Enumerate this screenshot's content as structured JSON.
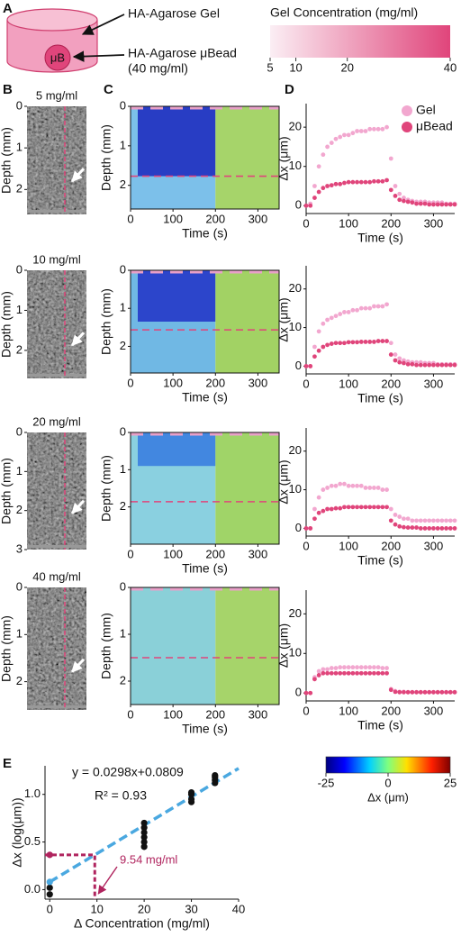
{
  "panel_labels": [
    "A",
    "B",
    "C",
    "D",
    "E"
  ],
  "panel_a": {
    "gel_label": "HA-Agarose Gel",
    "bead_label": "HA-Agarose μBead",
    "bead_conc": "(40 mg/ml)",
    "bead_symbol": "μB",
    "scale": {
      "title": "Gel Concentration (mg/ml)",
      "xlim": [
        5,
        40
      ],
      "xticks": [
        5,
        10,
        20,
        40
      ]
    }
  },
  "ultrasound": [
    {
      "title": "5 mg/ml",
      "ylabel": "Depth (mm)",
      "ylim": [
        2.6,
        0
      ],
      "yticks": [
        0,
        1,
        2
      ]
    },
    {
      "title": "10 mg/ml",
      "ylabel": "Depth (mm)",
      "ylim": [
        2.7,
        0
      ],
      "yticks": [
        0,
        1,
        2
      ]
    },
    {
      "title": "20 mg/ml",
      "ylabel": "Depth (mm)",
      "ylim": [
        3,
        0
      ],
      "yticks": [
        0,
        1,
        2,
        3
      ]
    },
    {
      "title": "40 mg/ml",
      "ylabel": "Depth (mm)",
      "ylim": [
        2.6,
        0
      ],
      "yticks": [
        0,
        1,
        2
      ]
    }
  ],
  "heatmaps": [
    {
      "xlabel": "Time (s)",
      "ylabel": "Depth (mm)",
      "xlim": [
        0,
        350
      ],
      "xticks": [
        0,
        100,
        200,
        300
      ],
      "ylim": [
        2.6,
        0
      ],
      "yticks": [
        0,
        1,
        2
      ]
    },
    {
      "xlabel": "Time (s)",
      "ylabel": "Depth (mm)",
      "xlim": [
        0,
        350
      ],
      "xticks": [
        0,
        100,
        200,
        300
      ],
      "ylim": [
        2.7,
        0
      ],
      "yticks": [
        0,
        1,
        2
      ]
    },
    {
      "xlabel": "Time (s)",
      "ylabel": "Depth (mm)",
      "xlim": [
        0,
        350
      ],
      "xticks": [
        0,
        100,
        200,
        300
      ],
      "ylim": [
        3,
        0
      ],
      "yticks": [
        0,
        1,
        2
      ]
    },
    {
      "xlabel": "Time (s)",
      "ylabel": "Depth (mm)",
      "xlim": [
        0,
        350
      ],
      "xticks": [
        0,
        100,
        200,
        300
      ],
      "ylim": [
        2.5,
        0
      ],
      "yticks": [
        0,
        1,
        2
      ]
    }
  ],
  "colorbar": {
    "label": "Δx (μm)",
    "xlim": [
      -25,
      25
    ],
    "xticks": [
      -25,
      0,
      25
    ]
  },
  "chart_data": [
    {
      "type": "scatter",
      "xlabel": "Time (s)",
      "ylabel": "Δx (μm)",
      "xlim": [
        0,
        350
      ],
      "xticks": [
        0,
        100,
        200,
        300
      ],
      "ylim": [
        -2,
        26
      ],
      "yticks": [
        0,
        10,
        20
      ],
      "legend": "upper right",
      "x": [
        0,
        10,
        20,
        30,
        40,
        50,
        60,
        70,
        80,
        90,
        100,
        110,
        120,
        130,
        140,
        150,
        160,
        170,
        180,
        190,
        200,
        210,
        220,
        230,
        240,
        250,
        260,
        270,
        280,
        290,
        300,
        310,
        320,
        330,
        340,
        350
      ],
      "series": [
        {
          "name": "Gel",
          "color": "#f2a7cf",
          "values": [
            0,
            0.5,
            5,
            10,
            13,
            15,
            16,
            17,
            17.5,
            18,
            18,
            18.5,
            19,
            19,
            19,
            19.5,
            19.5,
            19.5,
            19.5,
            20,
            12,
            5,
            3,
            2,
            1.5,
            1.2,
            1,
            1,
            1,
            0.8,
            0.8,
            0.8,
            0.8,
            0.5,
            0.5,
            0.5
          ]
        },
        {
          "name": "μBead",
          "color": "#e0457b",
          "values": [
            0,
            0,
            2,
            3.5,
            4.5,
            5,
            5.2,
            5.5,
            5.5,
            5.8,
            6,
            6,
            6,
            6,
            6,
            6,
            6.2,
            6.2,
            6.2,
            6.5,
            4,
            2.5,
            1.5,
            1.2,
            1,
            0.8,
            0.5,
            0.5,
            0.5,
            0.3,
            0.3,
            0.3,
            0.3,
            0.3,
            0.3,
            0.3
          ]
        }
      ]
    },
    {
      "type": "scatter",
      "xlabel": "Time (s)",
      "ylabel": "Δx (μm)",
      "xlim": [
        0,
        350
      ],
      "xticks": [
        0,
        100,
        200,
        300
      ],
      "ylim": [
        -2,
        26
      ],
      "yticks": [
        0,
        10,
        20
      ],
      "x": [
        0,
        10,
        20,
        30,
        40,
        50,
        60,
        70,
        80,
        90,
        100,
        110,
        120,
        130,
        140,
        150,
        160,
        170,
        180,
        190,
        200,
        210,
        220,
        230,
        240,
        250,
        260,
        270,
        280,
        290,
        300,
        310,
        320,
        330,
        340,
        350
      ],
      "series": [
        {
          "color": "#f2a7cf",
          "values": [
            0,
            0,
            5,
            9,
            11,
            12,
            12.5,
            13,
            13.5,
            14,
            14,
            14.5,
            14.5,
            15,
            15,
            15,
            15.5,
            15.5,
            15.5,
            16,
            6,
            3,
            2,
            1.5,
            1.2,
            1,
            1,
            1,
            0.8,
            0.8,
            0.8,
            0.5,
            0.5,
            0.5,
            0.5,
            0.5
          ]
        },
        {
          "color": "#e0457b",
          "values": [
            0,
            0,
            2.5,
            4,
            5,
            5.5,
            5.8,
            6,
            6,
            6,
            6.2,
            6.2,
            6.2,
            6.3,
            6.3,
            6.3,
            6.3,
            6.5,
            6.5,
            6.5,
            3,
            1.5,
            1,
            0.8,
            0.5,
            0.5,
            0.3,
            0.3,
            0.3,
            0.3,
            0.3,
            0.3,
            0.3,
            0.3,
            0.3,
            0.3
          ]
        }
      ]
    },
    {
      "type": "scatter",
      "xlabel": "Time (s)",
      "ylabel": "Δx (μm)",
      "xlim": [
        0,
        350
      ],
      "xticks": [
        0,
        100,
        200,
        300
      ],
      "ylim": [
        -2,
        26
      ],
      "yticks": [
        0,
        10,
        20
      ],
      "x": [
        0,
        10,
        20,
        30,
        40,
        50,
        60,
        70,
        80,
        90,
        100,
        110,
        120,
        130,
        140,
        150,
        160,
        170,
        180,
        190,
        200,
        210,
        220,
        230,
        240,
        250,
        260,
        270,
        280,
        290,
        300,
        310,
        320,
        330,
        340,
        350
      ],
      "series": [
        {
          "color": "#f2a7cf",
          "values": [
            0,
            0,
            5,
            8,
            10,
            10.5,
            11,
            11,
            11.5,
            11.5,
            11,
            11,
            11,
            11,
            10.5,
            10.5,
            10.5,
            10.5,
            10,
            10,
            5,
            3.5,
            3,
            2.5,
            2.5,
            2,
            2,
            2,
            2,
            2,
            2,
            2,
            2,
            2,
            2,
            2
          ]
        },
        {
          "color": "#e0457b",
          "values": [
            0,
            0,
            2.5,
            4,
            4.5,
            5,
            5,
            5.2,
            5.2,
            5.5,
            5.5,
            5.5,
            5.5,
            5.5,
            5.5,
            5.5,
            5.5,
            5.5,
            5.5,
            5.5,
            2,
            1,
            0.5,
            0.3,
            0.2,
            0.2,
            0.2,
            0,
            0,
            0,
            0,
            0,
            0,
            0,
            0,
            0
          ]
        }
      ]
    },
    {
      "type": "scatter",
      "xlabel": "Time (s)",
      "ylabel": "Δx (μm)",
      "xlim": [
        0,
        350
      ],
      "xticks": [
        0,
        100,
        200,
        300
      ],
      "ylim": [
        -2,
        26
      ],
      "yticks": [
        0,
        10,
        20
      ],
      "x": [
        0,
        10,
        20,
        30,
        40,
        50,
        60,
        70,
        80,
        90,
        100,
        110,
        120,
        130,
        140,
        150,
        160,
        170,
        180,
        190,
        200,
        210,
        220,
        230,
        240,
        250,
        260,
        270,
        280,
        290,
        300,
        310,
        320,
        330,
        340,
        350
      ],
      "series": [
        {
          "color": "#f2a7cf",
          "values": [
            0,
            0,
            4,
            5.5,
            6,
            6,
            6.3,
            6.3,
            6.5,
            6.5,
            6.5,
            6.5,
            6.5,
            6.5,
            6.5,
            6.5,
            6.5,
            6.5,
            6.3,
            6.3,
            1,
            0.5,
            0.3,
            0.3,
            0.2,
            0.2,
            0.2,
            0.2,
            0.2,
            0.2,
            0.2,
            0.2,
            0.2,
            0.2,
            0.2,
            0.2
          ]
        },
        {
          "color": "#e0457b",
          "values": [
            0,
            0,
            3.5,
            4.5,
            5,
            5,
            5,
            5,
            5,
            5,
            5,
            5,
            5,
            5,
            5,
            5,
            5,
            5,
            5,
            5,
            0.8,
            0.3,
            0.2,
            0.2,
            0.2,
            0.2,
            0.2,
            0.2,
            0.2,
            0.2,
            0.2,
            0.2,
            0.2,
            0.2,
            0.2,
            0.2
          ]
        }
      ]
    },
    {
      "type": "regression",
      "xlabel": "Δ Concentration (mg/ml)",
      "ylabel": "Δx (log(μm))",
      "xlim": [
        -1,
        40
      ],
      "xticks": [
        0,
        10,
        20,
        30,
        40
      ],
      "ylim": [
        -0.1,
        1.3
      ],
      "yticks": [
        {
          "value": 0,
          "label": "0.0"
        },
        0.5,
        {
          "value": 1,
          "label": "1.0"
        }
      ],
      "equation": "y = 0.0298x+0.0809",
      "r2": "R² = 0.93",
      "annotation": "9.54 mg/ml",
      "fit": {
        "slope": 0.0298,
        "intercept": 0.0809,
        "color": "#4aa8e0"
      },
      "marker": {
        "x": 9.54,
        "y": 0.365,
        "color": "#b0245e"
      },
      "series": [
        {
          "color": "#111111",
          "x": [
            0,
            0,
            20,
            20,
            20,
            20,
            20,
            20,
            30,
            30,
            30,
            30,
            35,
            35,
            35,
            35
          ],
          "values": [
            -0.05,
            0.02,
            0.45,
            0.5,
            0.55,
            0.6,
            0.65,
            0.7,
            0.92,
            0.95,
            1.0,
            1.02,
            1.12,
            1.15,
            1.18,
            1.2
          ]
        }
      ]
    }
  ]
}
